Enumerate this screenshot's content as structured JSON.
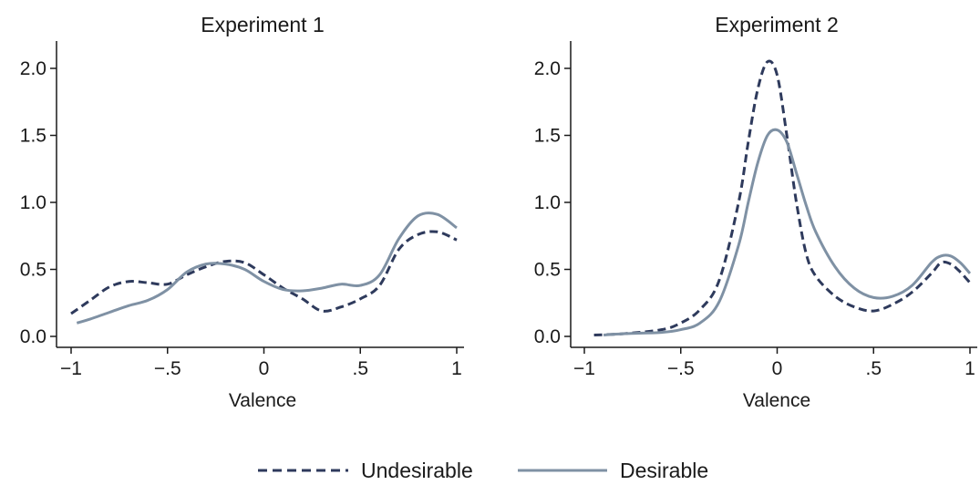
{
  "chart_data": [
    {
      "type": "line",
      "title": "Experiment 1",
      "xlabel": "Valence",
      "ylabel": "",
      "xlim": [
        -1,
        1
      ],
      "ylim": [
        0,
        2.2
      ],
      "x_ticks": [
        -1,
        -0.5,
        0,
        0.5,
        1
      ],
      "x_tick_labels": [
        "−1",
        "−.5",
        "0",
        ".5",
        "1"
      ],
      "y_ticks": [
        0,
        0.5,
        1,
        1.5,
        2
      ],
      "y_tick_labels": [
        "0.0",
        "0.5",
        "1.0",
        "1.5",
        "2.0"
      ],
      "grid": false,
      "series": [
        {
          "name": "Undesirable",
          "style": "dashed",
          "color": "#2e3a5c",
          "x": [
            -1.0,
            -0.9,
            -0.8,
            -0.7,
            -0.6,
            -0.5,
            -0.4,
            -0.3,
            -0.2,
            -0.1,
            0.0,
            0.1,
            0.2,
            0.3,
            0.4,
            0.5,
            0.6,
            0.7,
            0.8,
            0.9,
            1.0
          ],
          "y": [
            0.17,
            0.27,
            0.37,
            0.41,
            0.4,
            0.39,
            0.46,
            0.52,
            0.56,
            0.55,
            0.46,
            0.36,
            0.28,
            0.19,
            0.22,
            0.28,
            0.38,
            0.65,
            0.76,
            0.78,
            0.72
          ]
        },
        {
          "name": "Desirable",
          "style": "solid",
          "color": "#7f91a4",
          "x": [
            -0.97,
            -0.9,
            -0.8,
            -0.7,
            -0.6,
            -0.5,
            -0.4,
            -0.3,
            -0.2,
            -0.1,
            0.0,
            0.1,
            0.2,
            0.3,
            0.4,
            0.5,
            0.6,
            0.7,
            0.8,
            0.9,
            1.0
          ],
          "y": [
            0.1,
            0.13,
            0.18,
            0.23,
            0.27,
            0.35,
            0.48,
            0.54,
            0.54,
            0.5,
            0.41,
            0.35,
            0.34,
            0.36,
            0.39,
            0.38,
            0.46,
            0.73,
            0.9,
            0.91,
            0.81
          ]
        }
      ]
    },
    {
      "type": "line",
      "title": "Experiment 2",
      "xlabel": "Valence",
      "ylabel": "",
      "xlim": [
        -1,
        1
      ],
      "ylim": [
        0,
        2.2
      ],
      "x_ticks": [
        -1,
        -0.5,
        0,
        0.5,
        1
      ],
      "x_tick_labels": [
        "−1",
        "−.5",
        "0",
        ".5",
        "1"
      ],
      "y_ticks": [
        0,
        0.5,
        1,
        1.5,
        2
      ],
      "y_tick_labels": [
        "0.0",
        "0.5",
        "1.0",
        "1.5",
        "2.0"
      ],
      "grid": false,
      "series": [
        {
          "name": "Undesirable",
          "style": "dashed",
          "color": "#2e3a5c",
          "x": [
            -0.95,
            -0.8,
            -0.6,
            -0.5,
            -0.4,
            -0.3,
            -0.2,
            -0.15,
            -0.1,
            -0.05,
            0.0,
            0.05,
            0.1,
            0.15,
            0.2,
            0.3,
            0.4,
            0.5,
            0.6,
            0.7,
            0.8,
            0.85,
            0.9,
            0.95,
            1.0
          ],
          "y": [
            0.01,
            0.02,
            0.05,
            0.1,
            0.2,
            0.42,
            1.0,
            1.45,
            1.85,
            2.05,
            1.95,
            1.5,
            1.0,
            0.62,
            0.45,
            0.3,
            0.22,
            0.19,
            0.24,
            0.33,
            0.47,
            0.55,
            0.54,
            0.48,
            0.4
          ]
        },
        {
          "name": "Desirable",
          "style": "solid",
          "color": "#7f91a4",
          "x": [
            -0.9,
            -0.8,
            -0.6,
            -0.5,
            -0.4,
            -0.3,
            -0.2,
            -0.15,
            -0.1,
            -0.05,
            0.0,
            0.05,
            0.1,
            0.15,
            0.2,
            0.3,
            0.4,
            0.5,
            0.6,
            0.7,
            0.8,
            0.85,
            0.9,
            0.95,
            1.0
          ],
          "y": [
            0.01,
            0.02,
            0.03,
            0.05,
            0.1,
            0.26,
            0.68,
            1.0,
            1.3,
            1.5,
            1.54,
            1.45,
            1.22,
            0.98,
            0.78,
            0.52,
            0.36,
            0.29,
            0.3,
            0.38,
            0.55,
            0.6,
            0.6,
            0.55,
            0.47
          ]
        }
      ]
    }
  ],
  "legend": {
    "placement": "bottom-center",
    "items": [
      {
        "label": "Undesirable",
        "style": "dashed",
        "color": "#2e3a5c"
      },
      {
        "label": "Desirable",
        "style": "solid",
        "color": "#7f91a4"
      }
    ]
  }
}
